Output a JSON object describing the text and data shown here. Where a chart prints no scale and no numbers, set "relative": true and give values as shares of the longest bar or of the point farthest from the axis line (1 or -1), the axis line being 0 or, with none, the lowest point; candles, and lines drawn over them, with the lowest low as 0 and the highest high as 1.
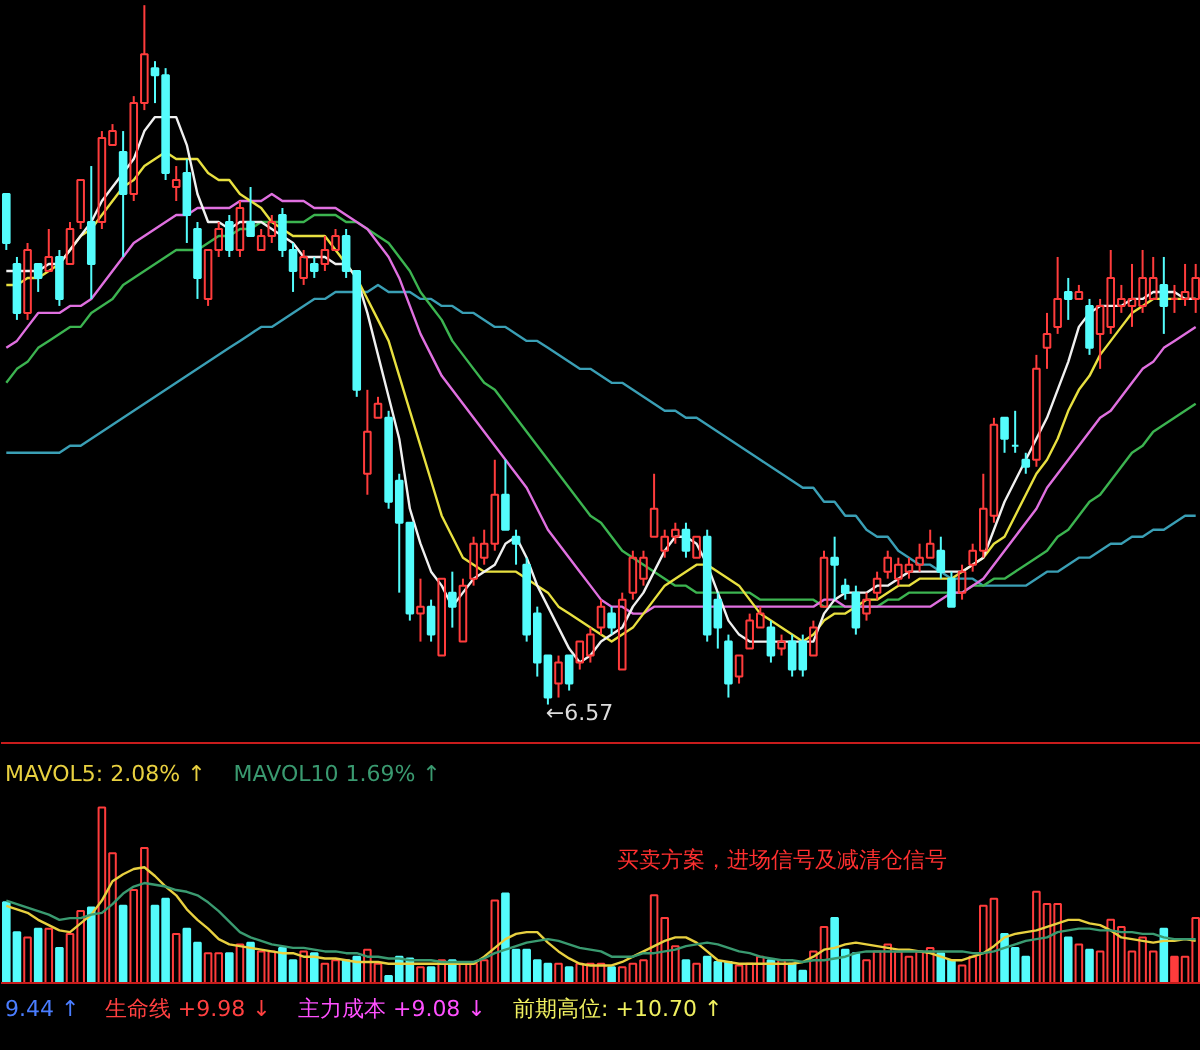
{
  "chart_data": [
    {
      "type": "candlestick",
      "relative": true,
      "categories": [
        null,
        null,
        null,
        null,
        null,
        null,
        null,
        null,
        null,
        null,
        null,
        null,
        null,
        null,
        null,
        null,
        null,
        null,
        null,
        null,
        null,
        null,
        null,
        null,
        null,
        null,
        null,
        null,
        null,
        null,
        null,
        null,
        null,
        null,
        null,
        null,
        null,
        null,
        null,
        null,
        null,
        null,
        null,
        null,
        null,
        null,
        null,
        null,
        null,
        null,
        null,
        null,
        null,
        null,
        null,
        null,
        null,
        null,
        null,
        null,
        null,
        null,
        null,
        null,
        null,
        null,
        null,
        null,
        null,
        null,
        null,
        null,
        null,
        null,
        null,
        null,
        null,
        null,
        null,
        null,
        null,
        null,
        null,
        null,
        null,
        null,
        null,
        null,
        null,
        null,
        null,
        null,
        null,
        null,
        null,
        null,
        null,
        null,
        null,
        null,
        null,
        null,
        null,
        null,
        null,
        null,
        null,
        null,
        null,
        null,
        null,
        null,
        null
      ],
      "ohlc": [
        [
          0.73,
          0.73,
          0.65,
          0.66
        ],
        [
          0.63,
          0.64,
          0.55,
          0.56
        ],
        [
          0.56,
          0.66,
          0.55,
          0.65
        ],
        [
          0.63,
          0.63,
          0.59,
          0.61
        ],
        [
          0.62,
          0.68,
          0.62,
          0.64
        ],
        [
          0.64,
          0.65,
          0.57,
          0.58
        ],
        [
          0.63,
          0.69,
          0.63,
          0.68
        ],
        [
          0.69,
          0.75,
          0.68,
          0.75
        ],
        [
          0.69,
          0.77,
          0.58,
          0.63
        ],
        [
          0.69,
          0.82,
          0.68,
          0.81
        ],
        [
          0.8,
          0.83,
          0.8,
          0.82
        ],
        [
          0.79,
          0.82,
          0.64,
          0.73
        ],
        [
          0.73,
          0.87,
          0.72,
          0.86
        ],
        [
          0.86,
          1.0,
          0.85,
          0.93
        ],
        [
          0.91,
          0.92,
          0.86,
          0.9
        ],
        [
          0.9,
          0.91,
          0.75,
          0.76
        ],
        [
          0.74,
          0.77,
          0.72,
          0.75
        ],
        [
          0.76,
          0.78,
          0.66,
          0.7
        ],
        [
          0.68,
          0.69,
          0.58,
          0.61
        ],
        [
          0.58,
          0.65,
          0.57,
          0.65
        ],
        [
          0.65,
          0.69,
          0.64,
          0.68
        ],
        [
          0.69,
          0.7,
          0.64,
          0.65
        ],
        [
          0.65,
          0.72,
          0.64,
          0.71
        ],
        [
          0.69,
          0.74,
          0.67,
          0.67
        ],
        [
          0.65,
          0.68,
          0.65,
          0.67
        ],
        [
          0.67,
          0.7,
          0.66,
          0.69
        ],
        [
          0.7,
          0.71,
          0.64,
          0.65
        ],
        [
          0.65,
          0.66,
          0.59,
          0.62
        ],
        [
          0.61,
          0.65,
          0.6,
          0.64
        ],
        [
          0.63,
          0.64,
          0.61,
          0.62
        ],
        [
          0.63,
          0.67,
          0.62,
          0.65
        ],
        [
          0.65,
          0.68,
          0.65,
          0.67
        ],
        [
          0.67,
          0.68,
          0.61,
          0.62
        ],
        [
          0.62,
          0.62,
          0.44,
          0.45
        ],
        [
          0.33,
          0.45,
          0.3,
          0.39
        ],
        [
          0.41,
          0.44,
          0.41,
          0.43
        ],
        [
          0.41,
          0.42,
          0.28,
          0.29
        ],
        [
          0.32,
          0.33,
          0.16,
          0.26
        ],
        [
          0.26,
          0.26,
          0.12,
          0.13
        ],
        [
          0.13,
          0.18,
          0.09,
          0.14
        ],
        [
          0.14,
          0.15,
          0.09,
          0.1
        ],
        [
          0.07,
          0.18,
          0.07,
          0.18
        ],
        [
          0.16,
          0.19,
          0.11,
          0.14
        ],
        [
          0.09,
          0.18,
          0.09,
          0.17
        ],
        [
          0.18,
          0.24,
          0.17,
          0.23
        ],
        [
          0.21,
          0.25,
          0.2,
          0.23
        ],
        [
          0.23,
          0.35,
          0.22,
          0.3
        ],
        [
          0.3,
          0.35,
          0.25,
          0.25
        ],
        [
          0.24,
          0.25,
          0.2,
          0.23
        ],
        [
          0.2,
          0.21,
          0.09,
          0.1
        ],
        [
          0.13,
          0.14,
          0.04,
          0.06
        ],
        [
          0.07,
          0.07,
          0.0,
          0.01
        ],
        [
          0.03,
          0.07,
          0.01,
          0.06
        ],
        [
          0.07,
          0.07,
          0.02,
          0.03
        ],
        [
          0.06,
          0.09,
          0.05,
          0.09
        ],
        [
          0.07,
          0.11,
          0.06,
          0.1
        ],
        [
          0.11,
          0.15,
          0.1,
          0.14
        ],
        [
          0.13,
          0.14,
          0.1,
          0.11
        ],
        [
          0.05,
          0.16,
          0.05,
          0.15
        ],
        [
          0.16,
          0.22,
          0.15,
          0.21
        ],
        [
          0.18,
          0.22,
          0.17,
          0.21
        ],
        [
          0.24,
          0.33,
          0.24,
          0.28
        ],
        [
          0.22,
          0.25,
          0.21,
          0.24
        ],
        [
          0.24,
          0.26,
          0.23,
          0.25
        ],
        [
          0.25,
          0.26,
          0.21,
          0.22
        ],
        [
          0.21,
          0.24,
          0.21,
          0.24
        ],
        [
          0.24,
          0.25,
          0.09,
          0.1
        ],
        [
          0.15,
          0.16,
          0.08,
          0.11
        ],
        [
          0.09,
          0.1,
          0.01,
          0.03
        ],
        [
          0.04,
          0.07,
          0.03,
          0.07
        ],
        [
          0.08,
          0.13,
          0.08,
          0.12
        ],
        [
          0.11,
          0.14,
          0.11,
          0.13
        ],
        [
          0.11,
          0.12,
          0.06,
          0.07
        ],
        [
          0.08,
          0.1,
          0.07,
          0.09
        ],
        [
          0.09,
          0.1,
          0.04,
          0.05
        ],
        [
          0.09,
          0.1,
          0.04,
          0.05
        ],
        [
          0.07,
          0.12,
          0.07,
          0.11
        ],
        [
          0.14,
          0.22,
          0.14,
          0.21
        ],
        [
          0.21,
          0.24,
          0.15,
          0.2
        ],
        [
          0.17,
          0.18,
          0.15,
          0.16
        ],
        [
          0.16,
          0.17,
          0.1,
          0.11
        ],
        [
          0.13,
          0.16,
          0.12,
          0.15
        ],
        [
          0.16,
          0.19,
          0.15,
          0.18
        ],
        [
          0.19,
          0.22,
          0.18,
          0.21
        ],
        [
          0.18,
          0.21,
          0.17,
          0.2
        ],
        [
          0.19,
          0.21,
          0.18,
          0.2
        ],
        [
          0.2,
          0.23,
          0.19,
          0.21
        ],
        [
          0.21,
          0.25,
          0.21,
          0.23
        ],
        [
          0.22,
          0.24,
          0.18,
          0.19
        ],
        [
          0.18,
          0.19,
          0.14,
          0.14
        ],
        [
          0.16,
          0.2,
          0.15,
          0.19
        ],
        [
          0.2,
          0.23,
          0.19,
          0.22
        ],
        [
          0.22,
          0.33,
          0.21,
          0.28
        ],
        [
          0.27,
          0.41,
          0.26,
          0.4
        ],
        [
          0.41,
          0.41,
          0.36,
          0.38
        ],
        [
          0.37,
          0.42,
          0.36,
          0.37
        ],
        [
          0.35,
          0.36,
          0.33,
          0.34
        ],
        [
          0.35,
          0.5,
          0.34,
          0.48
        ],
        [
          0.51,
          0.56,
          0.48,
          0.53
        ],
        [
          0.54,
          0.64,
          0.53,
          0.58
        ],
        [
          0.59,
          0.61,
          0.55,
          0.58
        ],
        [
          0.58,
          0.6,
          0.58,
          0.59
        ],
        [
          0.57,
          0.58,
          0.5,
          0.51
        ],
        [
          0.53,
          0.58,
          0.48,
          0.57
        ],
        [
          0.54,
          0.65,
          0.53,
          0.61
        ],
        [
          0.57,
          0.6,
          0.56,
          0.58
        ],
        [
          0.57,
          0.63,
          0.54,
          0.58
        ],
        [
          0.57,
          0.65,
          0.56,
          0.61
        ],
        [
          0.58,
          0.64,
          0.58,
          0.61
        ],
        [
          0.6,
          0.64,
          0.53,
          0.57
        ],
        [
          0.58,
          0.6,
          0.56,
          0.58
        ],
        [
          0.58,
          0.63,
          0.57,
          0.59
        ],
        [
          0.58,
          0.63,
          0.56,
          0.61
        ]
      ],
      "colors": [
        "#54fcfc",
        "#54fcfc",
        "#ff3c3c",
        "#54fcfc",
        "#ff3c3c",
        "#54fcfc",
        "#ff3c3c",
        "#ff3c3c",
        "#54fcfc",
        "#ff3c3c",
        "#ff3c3c",
        "#54fcfc",
        "#ff3c3c",
        "#ff3c3c",
        "#54fcfc",
        "#54fcfc",
        "#ff3c3c",
        "#54fcfc",
        "#54fcfc",
        "#ff3c3c",
        "#ff3c3c",
        "#54fcfc",
        "#ff3c3c",
        "#54fcfc",
        "#ff3c3c",
        "#ff3c3c",
        "#54fcfc",
        "#54fcfc",
        "#ff3c3c",
        "#54fcfc",
        "#ff3c3c",
        "#ff3c3c",
        "#54fcfc",
        "#54fcfc",
        "#ff3c3c",
        "#ff3c3c",
        "#54fcfc",
        "#54fcfc",
        "#54fcfc",
        "#ff3c3c",
        "#54fcfc",
        "#ff3c3c",
        "#54fcfc",
        "#ff3c3c",
        "#ff3c3c",
        "#ff3c3c",
        "#ff3c3c",
        "#54fcfc",
        "#54fcfc",
        "#54fcfc",
        "#54fcfc",
        "#54fcfc",
        "#ff3c3c",
        "#54fcfc",
        "#ff3c3c",
        "#ff3c3c",
        "#ff3c3c",
        "#54fcfc",
        "#ff3c3c",
        "#ff3c3c",
        "#ff3c3c",
        "#ff3c3c",
        "#ff3c3c",
        "#ff3c3c",
        "#54fcfc",
        "#ff3c3c",
        "#54fcfc",
        "#54fcfc",
        "#54fcfc",
        "#ff3c3c",
        "#ff3c3c",
        "#ff3c3c",
        "#54fcfc",
        "#ff3c3c",
        "#54fcfc",
        "#54fcfc",
        "#ff3c3c",
        "#ff3c3c",
        "#54fcfc",
        "#54fcfc",
        "#54fcfc",
        "#ff3c3c",
        "#ff3c3c",
        "#ff3c3c",
        "#ff3c3c",
        "#ff3c3c",
        "#ff3c3c",
        "#ff3c3c",
        "#54fcfc",
        "#54fcfc",
        "#ff3c3c",
        "#ff3c3c",
        "#ff3c3c",
        "#ff3c3c",
        "#54fcfc",
        "#54fcfc",
        "#54fcfc",
        "#ff3c3c",
        "#ff3c3c",
        "#ff3c3c",
        "#54fcfc",
        "#ff3c3c",
        "#54fcfc",
        "#ff3c3c",
        "#ff3c3c",
        "#ff3c3c",
        "#ff3c3c",
        "#ff3c3c",
        "#ff3c3c",
        "#54fcfc",
        "#ff3c3c",
        "#ff3c3c",
        "#ff3c3c"
      ],
      "series": [
        {
          "type": "line",
          "color": "#3a9fb5",
          "values": [
            0.36,
            0.36,
            0.36,
            0.36,
            0.36,
            0.36,
            0.37,
            0.37,
            0.38,
            0.39,
            0.4,
            0.41,
            0.42,
            0.43,
            0.44,
            0.45,
            0.46,
            0.47,
            0.48,
            0.49,
            0.5,
            0.51,
            0.52,
            0.53,
            0.54,
            0.54,
            0.55,
            0.56,
            0.57,
            0.58,
            0.58,
            0.59,
            0.59,
            0.59,
            0.59,
            0.6,
            0.59,
            0.59,
            0.59,
            0.58,
            0.58,
            0.57,
            0.57,
            0.56,
            0.56,
            0.55,
            0.54,
            0.54,
            0.53,
            0.52,
            0.52,
            0.51,
            0.5,
            0.49,
            0.48,
            0.48,
            0.47,
            0.46,
            0.46,
            0.45,
            0.44,
            0.43,
            0.42,
            0.42,
            0.41,
            0.41,
            0.4,
            0.39,
            0.38,
            0.37,
            0.36,
            0.35,
            0.34,
            0.33,
            0.32,
            0.31,
            0.31,
            0.29,
            0.29,
            0.27,
            0.27,
            0.25,
            0.24,
            0.24,
            0.22,
            0.21,
            0.2,
            0.2,
            0.19,
            0.18,
            0.18,
            0.18,
            0.17,
            0.17,
            0.17,
            0.17,
            0.17,
            0.18,
            0.19,
            0.19,
            0.2,
            0.21,
            0.21,
            0.22,
            0.23,
            0.23,
            0.24,
            0.24,
            0.25,
            0.25,
            0.26,
            0.27,
            0.27
          ]
        },
        {
          "type": "line",
          "color": "#3cb450",
          "values": [
            0.46,
            0.48,
            0.49,
            0.51,
            0.52,
            0.53,
            0.54,
            0.54,
            0.56,
            0.57,
            0.58,
            0.6,
            0.61,
            0.62,
            0.63,
            0.64,
            0.65,
            0.65,
            0.65,
            0.66,
            0.67,
            0.67,
            0.68,
            0.68,
            0.69,
            0.69,
            0.69,
            0.69,
            0.69,
            0.7,
            0.7,
            0.7,
            0.69,
            0.69,
            0.68,
            0.67,
            0.66,
            0.64,
            0.62,
            0.59,
            0.57,
            0.55,
            0.52,
            0.5,
            0.48,
            0.46,
            0.45,
            0.43,
            0.41,
            0.39,
            0.37,
            0.35,
            0.33,
            0.31,
            0.29,
            0.27,
            0.26,
            0.24,
            0.22,
            0.21,
            0.2,
            0.19,
            0.18,
            0.17,
            0.17,
            0.16,
            0.16,
            0.16,
            0.16,
            0.16,
            0.16,
            0.15,
            0.15,
            0.15,
            0.15,
            0.15,
            0.15,
            0.14,
            0.14,
            0.14,
            0.14,
            0.14,
            0.14,
            0.15,
            0.15,
            0.16,
            0.16,
            0.16,
            0.16,
            0.16,
            0.16,
            0.17,
            0.17,
            0.18,
            0.18,
            0.19,
            0.2,
            0.21,
            0.22,
            0.24,
            0.25,
            0.27,
            0.29,
            0.3,
            0.32,
            0.34,
            0.36,
            0.37,
            0.39,
            0.4,
            0.41,
            0.42,
            0.43
          ]
        },
        {
          "type": "line",
          "color": "#e070e0",
          "values": [
            0.51,
            0.52,
            0.54,
            0.56,
            0.56,
            0.56,
            0.57,
            0.57,
            0.58,
            0.6,
            0.62,
            0.64,
            0.66,
            0.67,
            0.68,
            0.69,
            0.7,
            0.7,
            0.71,
            0.71,
            0.71,
            0.71,
            0.72,
            0.72,
            0.72,
            0.73,
            0.72,
            0.72,
            0.72,
            0.71,
            0.71,
            0.71,
            0.7,
            0.69,
            0.68,
            0.66,
            0.64,
            0.61,
            0.57,
            0.53,
            0.5,
            0.47,
            0.45,
            0.43,
            0.41,
            0.39,
            0.37,
            0.35,
            0.33,
            0.31,
            0.28,
            0.25,
            0.23,
            0.21,
            0.19,
            0.17,
            0.15,
            0.14,
            0.14,
            0.13,
            0.13,
            0.14,
            0.14,
            0.14,
            0.14,
            0.14,
            0.14,
            0.14,
            0.14,
            0.14,
            0.14,
            0.14,
            0.14,
            0.14,
            0.14,
            0.14,
            0.14,
            0.15,
            0.15,
            0.14,
            0.14,
            0.14,
            0.14,
            0.14,
            0.14,
            0.14,
            0.14,
            0.14,
            0.15,
            0.16,
            0.16,
            0.17,
            0.18,
            0.2,
            0.22,
            0.24,
            0.26,
            0.28,
            0.31,
            0.33,
            0.35,
            0.37,
            0.39,
            0.41,
            0.42,
            0.44,
            0.46,
            0.48,
            0.49,
            0.51,
            0.52,
            0.53,
            0.54
          ]
        },
        {
          "type": "line",
          "color": "#e8e040",
          "values": [
            0.6,
            0.6,
            0.61,
            0.61,
            0.62,
            0.63,
            0.65,
            0.67,
            0.68,
            0.7,
            0.72,
            0.74,
            0.75,
            0.77,
            0.78,
            0.79,
            0.78,
            0.78,
            0.78,
            0.76,
            0.75,
            0.75,
            0.73,
            0.72,
            0.71,
            0.69,
            0.68,
            0.67,
            0.67,
            0.67,
            0.67,
            0.65,
            0.63,
            0.61,
            0.58,
            0.55,
            0.52,
            0.47,
            0.42,
            0.37,
            0.32,
            0.27,
            0.24,
            0.21,
            0.2,
            0.19,
            0.19,
            0.19,
            0.19,
            0.18,
            0.17,
            0.16,
            0.14,
            0.13,
            0.12,
            0.11,
            0.1,
            0.09,
            0.1,
            0.11,
            0.13,
            0.15,
            0.17,
            0.18,
            0.19,
            0.2,
            0.2,
            0.19,
            0.18,
            0.17,
            0.15,
            0.13,
            0.12,
            0.11,
            0.1,
            0.09,
            0.1,
            0.12,
            0.13,
            0.13,
            0.14,
            0.15,
            0.15,
            0.16,
            0.17,
            0.17,
            0.18,
            0.18,
            0.18,
            0.18,
            0.19,
            0.2,
            0.21,
            0.23,
            0.24,
            0.27,
            0.3,
            0.33,
            0.35,
            0.38,
            0.42,
            0.45,
            0.47,
            0.5,
            0.52,
            0.54,
            0.56,
            0.57,
            0.58,
            0.58,
            0.58,
            0.58,
            0.58
          ]
        },
        {
          "type": "line",
          "color": "#f0f0f0",
          "values": [
            0.62,
            0.62,
            0.62,
            0.62,
            0.63,
            0.63,
            0.65,
            0.67,
            0.69,
            0.72,
            0.74,
            0.76,
            0.78,
            0.82,
            0.84,
            0.84,
            0.84,
            0.8,
            0.73,
            0.69,
            0.69,
            0.68,
            0.69,
            0.69,
            0.69,
            0.68,
            0.67,
            0.66,
            0.64,
            0.64,
            0.64,
            0.63,
            0.63,
            0.61,
            0.56,
            0.5,
            0.44,
            0.38,
            0.28,
            0.23,
            0.19,
            0.17,
            0.14,
            0.16,
            0.18,
            0.19,
            0.2,
            0.23,
            0.24,
            0.21,
            0.17,
            0.14,
            0.11,
            0.08,
            0.06,
            0.07,
            0.09,
            0.1,
            0.11,
            0.14,
            0.16,
            0.19,
            0.22,
            0.24,
            0.24,
            0.23,
            0.2,
            0.16,
            0.12,
            0.1,
            0.09,
            0.09,
            0.09,
            0.09,
            0.09,
            0.09,
            0.09,
            0.13,
            0.15,
            0.16,
            0.16,
            0.16,
            0.17,
            0.17,
            0.18,
            0.19,
            0.19,
            0.19,
            0.19,
            0.19,
            0.19,
            0.2,
            0.21,
            0.25,
            0.29,
            0.32,
            0.35,
            0.38,
            0.41,
            0.45,
            0.49,
            0.54,
            0.56,
            0.57,
            0.57,
            0.57,
            0.58,
            0.58,
            0.59,
            0.59,
            0.59,
            0.58,
            0.58
          ]
        }
      ],
      "annotations": [
        "←6.57"
      ]
    },
    {
      "type": "bar",
      "relative": true,
      "categories": [
        null,
        null,
        null,
        null,
        null,
        null,
        null,
        null,
        null,
        null,
        null,
        null,
        null,
        null,
        null,
        null,
        null,
        null,
        null,
        null,
        null,
        null,
        null,
        null,
        null,
        null,
        null,
        null,
        null,
        null,
        null,
        null,
        null,
        null,
        null,
        null,
        null,
        null,
        null,
        null,
        null,
        null,
        null,
        null,
        null,
        null,
        null,
        null,
        null,
        null,
        null,
        null,
        null,
        null,
        null,
        null,
        null,
        null,
        null,
        null,
        null,
        null,
        null,
        null,
        null,
        null,
        null,
        null,
        null,
        null,
        null,
        null,
        null,
        null,
        null,
        null,
        null,
        null,
        null,
        null,
        null,
        null,
        null,
        null,
        null,
        null,
        null,
        null,
        null,
        null,
        null,
        null,
        null,
        null,
        null,
        null,
        null,
        null,
        null,
        null,
        null,
        null,
        null,
        null,
        null,
        null,
        null,
        null,
        null,
        null,
        null,
        null,
        null
      ],
      "series": [
        {
          "type": "bar",
          "colors": [
            "#54fcfc",
            "#54fcfc",
            "#ff3c3c",
            "#54fcfc",
            "#ff3c3c",
            "#54fcfc",
            "#ff3c3c",
            "#ff3c3c",
            "#54fcfc",
            "#ff3c3c",
            "#ff3c3c",
            "#54fcfc",
            "#ff3c3c",
            "#ff3c3c",
            "#54fcfc",
            "#54fcfc",
            "#ff3c3c",
            "#54fcfc",
            "#54fcfc",
            "#ff3c3c",
            "#ff3c3c",
            "#54fcfc",
            "#ff3c3c",
            "#54fcfc",
            "#ff3c3c",
            "#ff3c3c",
            "#54fcfc",
            "#54fcfc",
            "#ff3c3c",
            "#54fcfc",
            "#ff3c3c",
            "#ff3c3c",
            "#54fcfc",
            "#54fcfc",
            "#ff3c3c",
            "#ff3c3c",
            "#54fcfc",
            "#54fcfc",
            "#54fcfc",
            "#ff3c3c",
            "#54fcfc",
            "#ff3c3c",
            "#54fcfc",
            "#ff3c3c",
            "#ff3c3c",
            "#ff3c3c",
            "#ff3c3c",
            "#54fcfc",
            "#54fcfc",
            "#54fcfc",
            "#54fcfc",
            "#54fcfc",
            "#ff3c3c",
            "#54fcfc",
            "#ff3c3c",
            "#ff3c3c",
            "#ff3c3c",
            "#54fcfc",
            "#ff3c3c",
            "#ff3c3c",
            "#ff3c3c",
            "#ff3c3c",
            "#ff3c3c",
            "#ff3c3c",
            "#54fcfc",
            "#ff3c3c",
            "#54fcfc",
            "#54fcfc",
            "#54fcfc",
            "#ff3c3c",
            "#ff3c3c",
            "#ff3c3c",
            "#54fcfc",
            "#ff3c3c",
            "#54fcfc",
            "#54fcfc",
            "#ff3c3c",
            "#ff3c3c",
            "#54fcfc",
            "#54fcfc",
            "#54fcfc",
            "#ff3c3c",
            "#ff3c3c",
            "#ff3c3c",
            "#ff3c3c",
            "#ff3c3c",
            "#ff3c3c",
            "#ff3c3c",
            "#54fcfc",
            "#54fcfc",
            "#ff3c3c",
            "#ff3c3c",
            "#ff3c3c",
            "#ff3c3c",
            "#54fcfc",
            "#54fcfc",
            "#54fcfc",
            "#ff3c3c",
            "#ff3c3c",
            "#ff3c3c",
            "#54fcfc",
            "#ff3c3c",
            "#54fcfc",
            "#ff3c3c",
            "#ff3c3c",
            "#ff3c3c",
            "#ff3c3c",
            "#ff3c3c",
            "#ff3c3c",
            "#54fcfc",
            "#ff3c3c",
            "#ff3c3c",
            "#ff3c3c"
          ],
          "values": [
            0.46,
            0.29,
            0.26,
            0.31,
            0.31,
            0.2,
            0.28,
            0.41,
            0.43,
            1.0,
            0.74,
            0.44,
            0.53,
            0.77,
            0.44,
            0.48,
            0.28,
            0.31,
            0.23,
            0.17,
            0.17,
            0.17,
            0.22,
            0.23,
            0.18,
            0.18,
            0.2,
            0.13,
            0.18,
            0.17,
            0.11,
            0.13,
            0.13,
            0.15,
            0.19,
            0.11,
            0.04,
            0.15,
            0.14,
            0.09,
            0.09,
            0.13,
            0.13,
            0.11,
            0.11,
            0.13,
            0.47,
            0.51,
            0.19,
            0.19,
            0.13,
            0.11,
            0.11,
            0.09,
            0.11,
            0.11,
            0.11,
            0.09,
            0.09,
            0.11,
            0.13,
            0.5,
            0.37,
            0.21,
            0.13,
            0.11,
            0.15,
            0.12,
            0.12,
            0.1,
            0.11,
            0.15,
            0.13,
            0.13,
            0.11,
            0.07,
            0.18,
            0.32,
            0.37,
            0.19,
            0.17,
            0.13,
            0.18,
            0.22,
            0.18,
            0.15,
            0.18,
            0.2,
            0.17,
            0.13,
            0.1,
            0.15,
            0.44,
            0.48,
            0.28,
            0.2,
            0.15,
            0.52,
            0.45,
            0.45,
            0.26,
            0.22,
            0.19,
            0.18,
            0.36,
            0.32,
            0.18,
            0.26,
            0.18,
            0.31,
            0.15,
            0.15,
            0.37
          ]
        },
        {
          "type": "line",
          "name": "MAVOL5: 2.08% ↑",
          "color": "#e8d040",
          "values": [
            0.44,
            0.42,
            0.4,
            0.36,
            0.33,
            0.3,
            0.29,
            0.34,
            0.39,
            0.47,
            0.58,
            0.62,
            0.65,
            0.66,
            0.61,
            0.55,
            0.5,
            0.42,
            0.36,
            0.31,
            0.25,
            0.22,
            0.21,
            0.2,
            0.19,
            0.18,
            0.17,
            0.17,
            0.15,
            0.15,
            0.14,
            0.14,
            0.13,
            0.12,
            0.12,
            0.12,
            0.11,
            0.11,
            0.11,
            0.11,
            0.11,
            0.11,
            0.11,
            0.11,
            0.11,
            0.15,
            0.2,
            0.25,
            0.28,
            0.29,
            0.29,
            0.23,
            0.18,
            0.14,
            0.11,
            0.1,
            0.1,
            0.1,
            0.12,
            0.15,
            0.18,
            0.21,
            0.24,
            0.26,
            0.26,
            0.23,
            0.18,
            0.13,
            0.12,
            0.11,
            0.11,
            0.11,
            0.11,
            0.11,
            0.11,
            0.12,
            0.15,
            0.19,
            0.2,
            0.22,
            0.23,
            0.22,
            0.21,
            0.2,
            0.19,
            0.19,
            0.18,
            0.17,
            0.15,
            0.13,
            0.13,
            0.15,
            0.17,
            0.21,
            0.26,
            0.28,
            0.29,
            0.3,
            0.32,
            0.34,
            0.36,
            0.36,
            0.34,
            0.33,
            0.3,
            0.26,
            0.25,
            0.24,
            0.23,
            0.24,
            0.24,
            0.25,
            0.24
          ]
        },
        {
          "type": "line",
          "name": "MAVOL10 1.69% ↑",
          "color": "#3a9a70",
          "values": [
            0.47,
            0.45,
            0.43,
            0.41,
            0.39,
            0.36,
            0.37,
            0.37,
            0.39,
            0.4,
            0.45,
            0.51,
            0.55,
            0.57,
            0.56,
            0.55,
            0.53,
            0.52,
            0.5,
            0.46,
            0.41,
            0.35,
            0.29,
            0.26,
            0.24,
            0.22,
            0.21,
            0.2,
            0.2,
            0.19,
            0.18,
            0.18,
            0.17,
            0.17,
            0.15,
            0.15,
            0.14,
            0.14,
            0.13,
            0.13,
            0.13,
            0.12,
            0.12,
            0.12,
            0.12,
            0.14,
            0.17,
            0.19,
            0.21,
            0.23,
            0.24,
            0.25,
            0.24,
            0.22,
            0.2,
            0.19,
            0.18,
            0.15,
            0.15,
            0.15,
            0.17,
            0.17,
            0.18,
            0.19,
            0.21,
            0.22,
            0.23,
            0.22,
            0.2,
            0.18,
            0.17,
            0.15,
            0.14,
            0.13,
            0.13,
            0.12,
            0.13,
            0.13,
            0.14,
            0.15,
            0.17,
            0.18,
            0.18,
            0.18,
            0.18,
            0.18,
            0.18,
            0.18,
            0.18,
            0.18,
            0.18,
            0.17,
            0.17,
            0.18,
            0.2,
            0.22,
            0.24,
            0.25,
            0.26,
            0.29,
            0.3,
            0.31,
            0.31,
            0.3,
            0.3,
            0.29,
            0.29,
            0.28,
            0.28,
            0.26,
            0.25,
            0.25,
            0.25
          ]
        }
      ],
      "annotations": [
        "买卖方案，进场信号及减清仓信号"
      ]
    },
    {
      "type": "other",
      "annotations": [
        "9.44 ↑",
        "生命线 +9.98 ↓",
        "主力成本 +9.08 ↓",
        "前期高位: +10.70 ↑"
      ],
      "colors": [
        "#4a7dff",
        "#ff4040",
        "#ff50ff",
        "#f0f060"
      ]
    }
  ]
}
